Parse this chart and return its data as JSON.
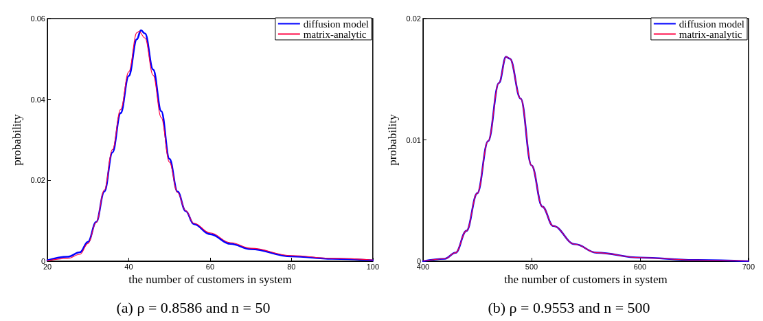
{
  "chart_data": [
    {
      "type": "line",
      "title": "(a) ρ = 0.8586 and n = 50",
      "xlabel": "the number of customers in system",
      "ylabel": "probability",
      "xlim": [
        20,
        100
      ],
      "xticks": [
        20,
        40,
        60,
        80,
        100
      ],
      "ylim": [
        0,
        0.06
      ],
      "yticks": [
        0,
        0.02,
        0.04,
        0.06
      ],
      "grid": false,
      "legend": "top right",
      "marker": "none",
      "line_style": "solid",
      "series": [
        {
          "name": "diffusion model",
          "color": "#0000ff",
          "x": [
            20,
            25,
            28,
            30,
            32,
            34,
            36,
            38,
            40,
            42,
            43,
            44,
            46,
            48,
            50,
            52,
            54,
            56,
            60,
            65,
            70,
            80,
            90,
            100
          ],
          "values": [
            0.0002,
            0.0011,
            0.0022,
            0.0048,
            0.0097,
            0.0172,
            0.0269,
            0.0366,
            0.0458,
            0.0549,
            0.0571,
            0.0563,
            0.0474,
            0.0371,
            0.0253,
            0.0172,
            0.0124,
            0.0092,
            0.0067,
            0.0043,
            0.003,
            0.0012,
            0.0006,
            0.0002
          ]
        },
        {
          "name": "matrix-analytic",
          "color": "#ff0040",
          "x": [
            20,
            25,
            28,
            30,
            32,
            34,
            36,
            38,
            40,
            42,
            42.5,
            44,
            46,
            48,
            50,
            52,
            54,
            56,
            60,
            65,
            70,
            80,
            90,
            100
          ],
          "values": [
            0.0001,
            0.0007,
            0.0017,
            0.0044,
            0.0096,
            0.0176,
            0.0276,
            0.0375,
            0.0468,
            0.0565,
            0.0568,
            0.0552,
            0.046,
            0.0355,
            0.0245,
            0.017,
            0.0125,
            0.0094,
            0.007,
            0.0046,
            0.0032,
            0.0014,
            0.0007,
            0.0003
          ]
        }
      ]
    },
    {
      "type": "line",
      "title": "(b) ρ = 0.9553 and n = 500",
      "xlabel": "the number of customers in system",
      "ylabel": "probability",
      "xlim": [
        400,
        700
      ],
      "xticks": [
        400,
        500,
        600,
        700
      ],
      "ylim": [
        0,
        0.02
      ],
      "yticks": [
        0,
        0.01,
        0.02
      ],
      "grid": false,
      "legend": "top right",
      "marker": "none",
      "line_style": "solid",
      "series": [
        {
          "name": "diffusion model",
          "color": "#0000ff",
          "x": [
            400,
            420,
            430,
            440,
            450,
            460,
            470,
            476.5,
            480,
            490,
            500,
            510,
            520,
            540,
            560,
            600,
            650,
            700
          ],
          "values": [
            0,
            0.0002,
            0.0007,
            0.0025,
            0.0056,
            0.0099,
            0.0147,
            0.01685,
            0.0167,
            0.0134,
            0.0079,
            0.0045,
            0.0029,
            0.0014,
            0.0007,
            0.0003,
            0.0001,
            0
          ]
        },
        {
          "name": "matrix-analytic",
          "color": "#ff0040",
          "x": [
            400,
            420,
            430,
            440,
            450,
            460,
            470,
            476.5,
            480,
            490,
            500,
            510,
            520,
            540,
            560,
            600,
            650,
            700
          ],
          "values": [
            0,
            0.0002,
            0.0007,
            0.0025,
            0.0056,
            0.0099,
            0.0147,
            0.01685,
            0.0167,
            0.0134,
            0.0079,
            0.0045,
            0.0029,
            0.0014,
            0.0007,
            0.0003,
            0.0001,
            0
          ]
        }
      ]
    }
  ]
}
